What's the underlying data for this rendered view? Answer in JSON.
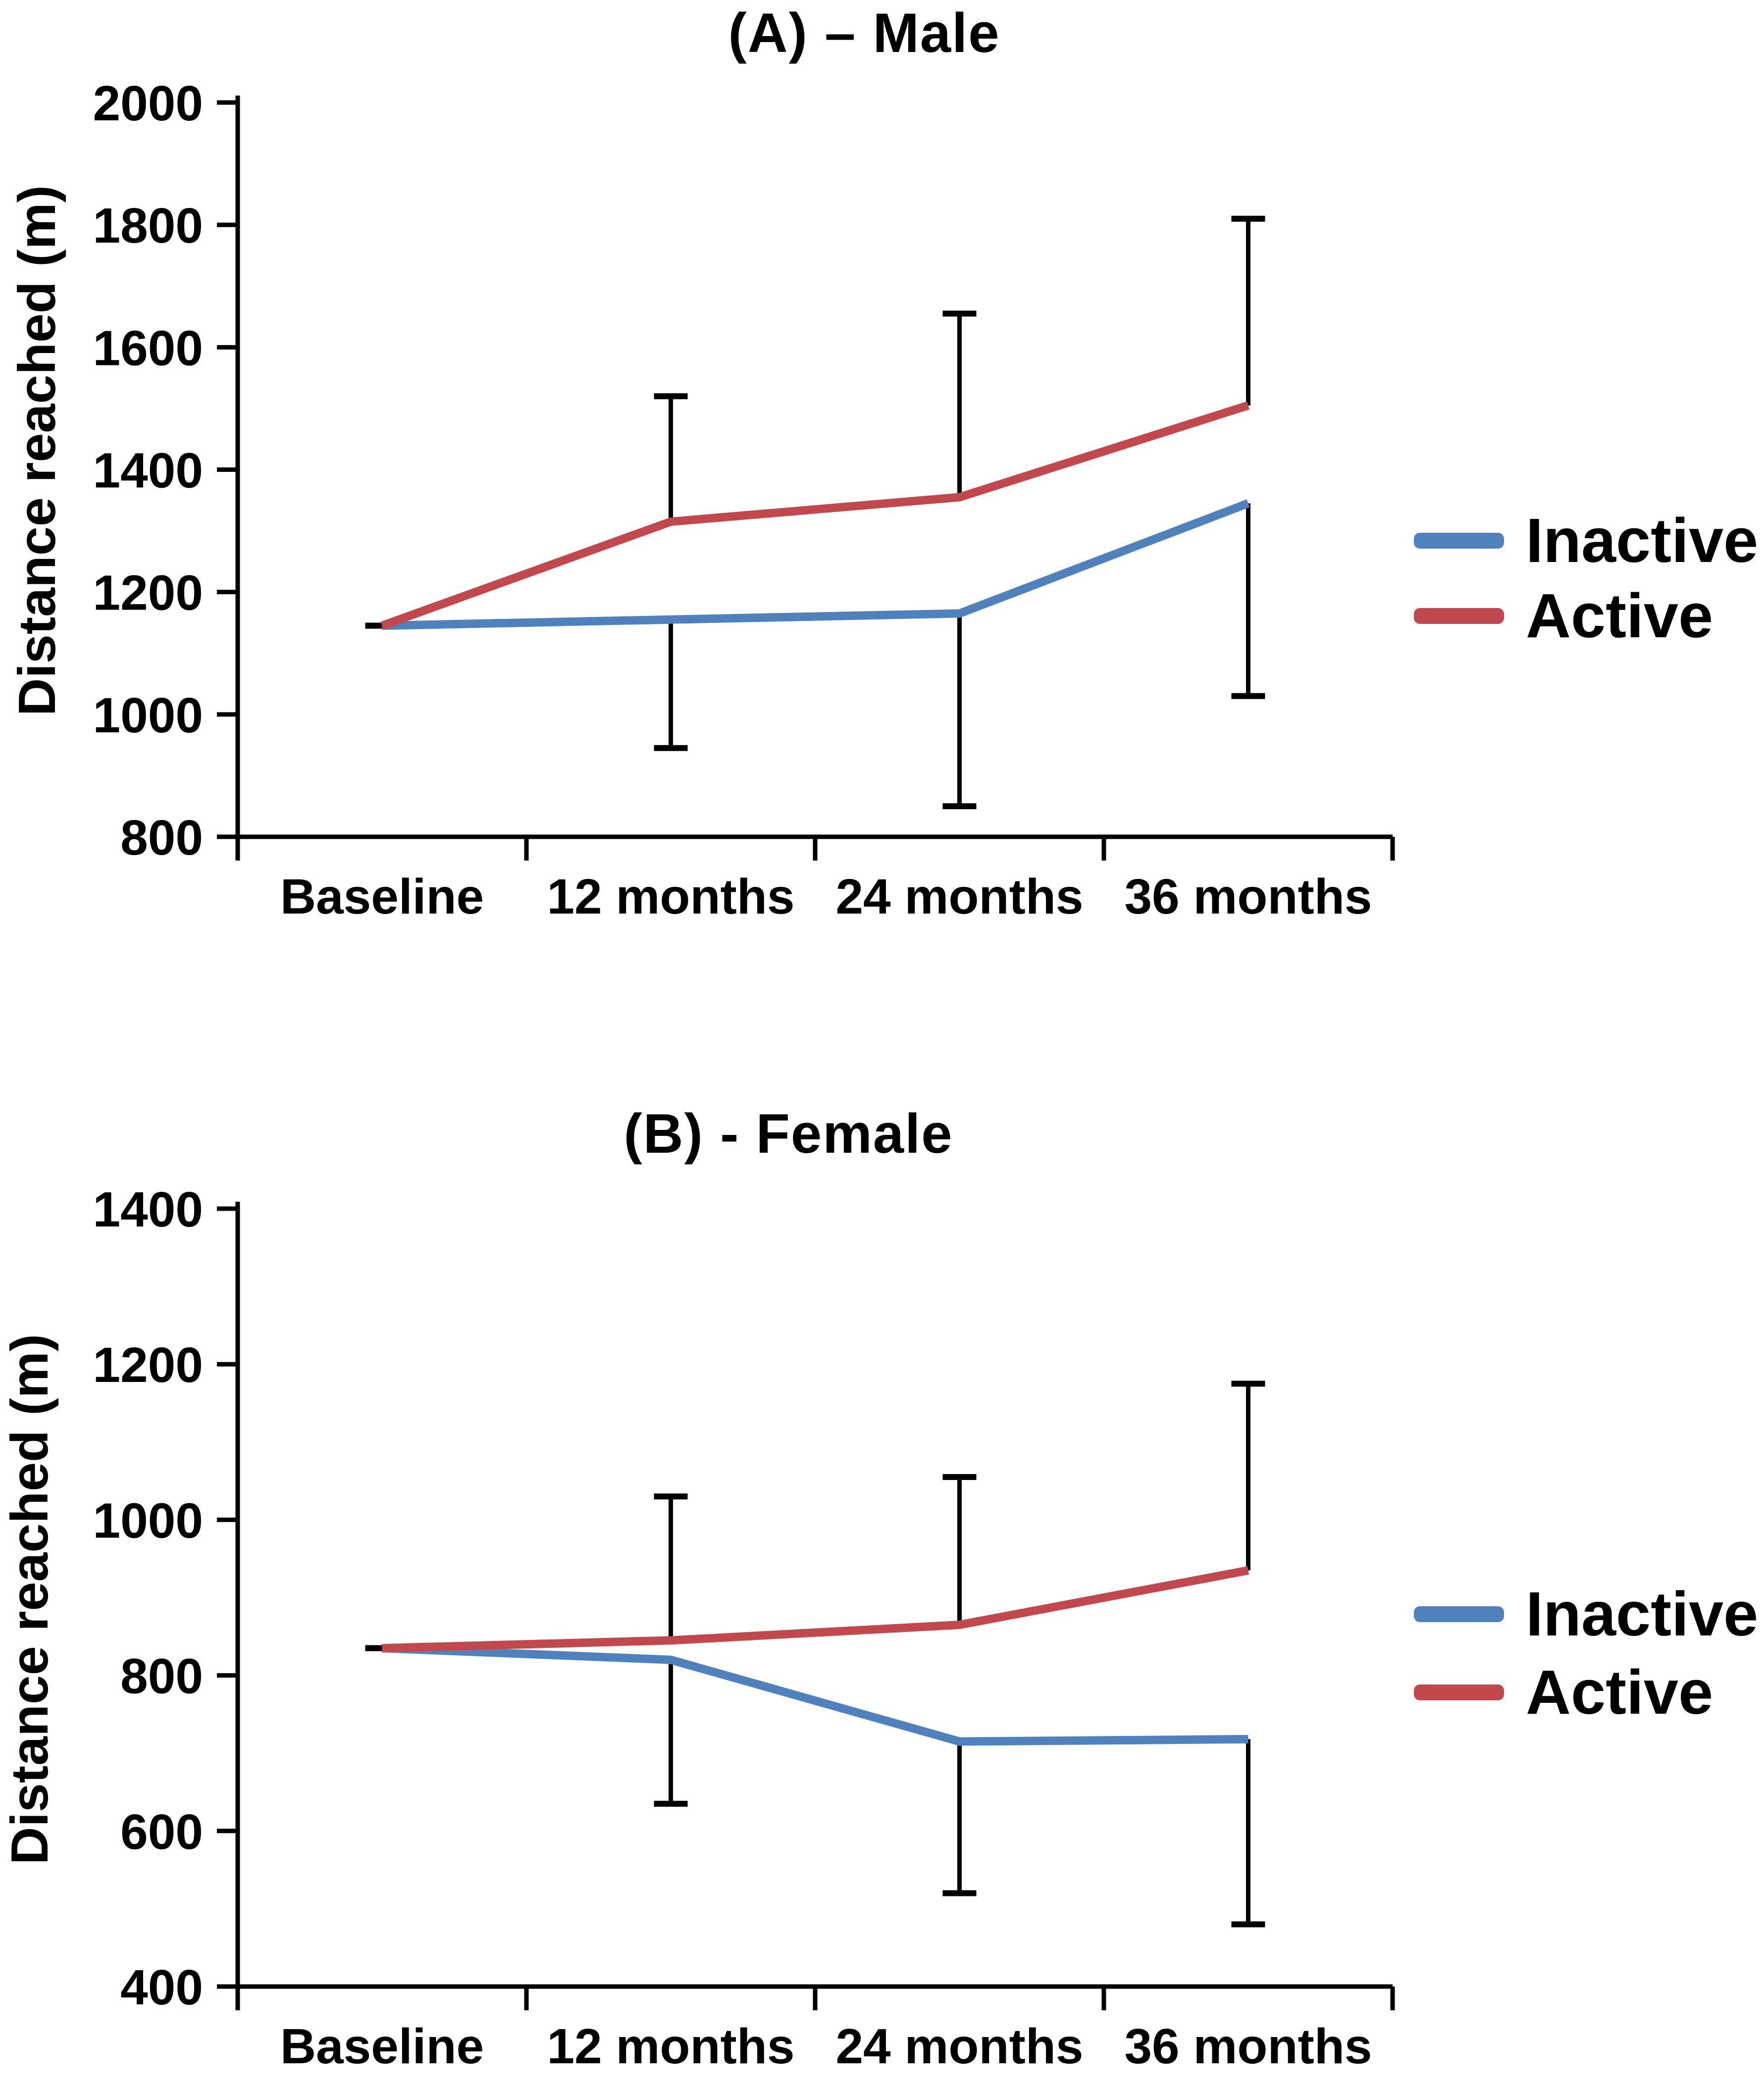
{
  "figure": {
    "background": "#ffffff"
  },
  "colors": {
    "inactive_series": "#4f81bd",
    "active_series": "#c1494e",
    "axis": "#000000",
    "error_bar": "#000000",
    "text": "#000000"
  },
  "chart_data": [
    {
      "id": "male",
      "type": "line",
      "title": "(A) – Male",
      "ylabel": "Distance reached (m)",
      "categories": [
        "Baseline",
        "12 months",
        "24 months",
        "36 months"
      ],
      "ylim": [
        800,
        2000
      ],
      "yticks": [
        2000,
        1800,
        1600,
        1400,
        1200,
        1000,
        800
      ],
      "grid": false,
      "legend_position": "right",
      "series": [
        {
          "name": "Inactive",
          "color": "#4f81bd",
          "values": [
            1145,
            1155,
            1165,
            1345
          ]
        },
        {
          "name": "Active",
          "color": "#c1494e",
          "values": [
            1145,
            1315,
            1355,
            1505
          ]
        }
      ],
      "error_bars": {
        "upper_from_active": [
          1145,
          1520,
          1655,
          1810
        ],
        "lower_from_inactive": [
          1145,
          945,
          850,
          1030
        ]
      }
    },
    {
      "id": "female",
      "type": "line",
      "title": "(B) - Female",
      "ylabel": "Distance reached (m)",
      "categories": [
        "Baseline",
        "12 months",
        "24 months",
        "36 months"
      ],
      "ylim": [
        400,
        1400
      ],
      "yticks": [
        1400,
        1200,
        1000,
        800,
        600,
        400
      ],
      "grid": false,
      "legend_position": "right",
      "series": [
        {
          "name": "Inactive",
          "color": "#4f81bd",
          "values": [
            835,
            820,
            715,
            718
          ]
        },
        {
          "name": "Active",
          "color": "#c1494e",
          "values": [
            835,
            845,
            865,
            935
          ]
        }
      ],
      "error_bars": {
        "upper_from_active": [
          835,
          1030,
          1055,
          1175
        ],
        "lower_from_inactive": [
          835,
          635,
          520,
          480
        ]
      }
    }
  ]
}
